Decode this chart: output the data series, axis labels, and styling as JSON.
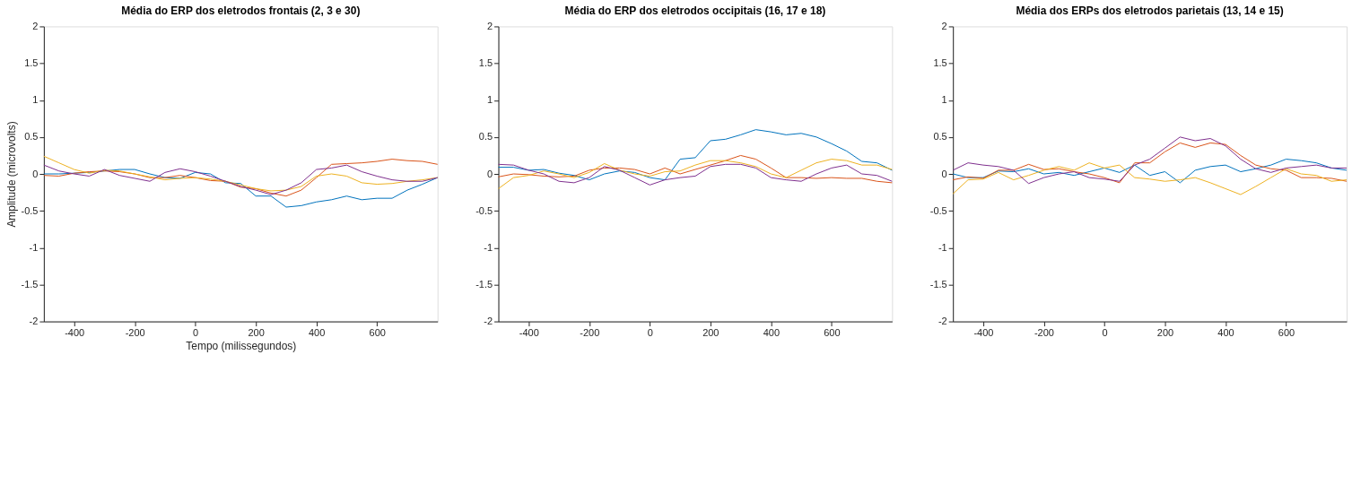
{
  "chart_data": [
    {
      "type": "line",
      "title": "Média do ERP dos eletrodos frontais (2, 3 e 30)",
      "xlabel": "Tempo (milissegundos)",
      "ylabel": "Amplitude (microvolts)",
      "x": [
        -500,
        -450,
        -400,
        -350,
        -300,
        -250,
        -200,
        -150,
        -100,
        -50,
        0,
        50,
        100,
        150,
        200,
        250,
        300,
        350,
        400,
        450,
        500,
        550,
        600,
        650,
        700,
        750,
        800
      ],
      "xlim": [
        -500,
        800
      ],
      "xticks": [
        -400,
        -200,
        0,
        200,
        400,
        600
      ],
      "ylim": [
        -2,
        2
      ],
      "yticks": [
        -2,
        -1.5,
        -1,
        -0.5,
        0,
        0.5,
        1,
        1.5,
        2
      ],
      "grid": false,
      "series": [
        {
          "color": "#0072bd",
          "values": [
            0.0,
            0.0,
            0.01,
            0.02,
            0.04,
            0.06,
            0.06,
            0.0,
            -0.05,
            -0.06,
            0.02,
            0.0,
            -0.12,
            -0.13,
            -0.3,
            -0.3,
            -0.45,
            -0.43,
            -0.38,
            -0.35,
            -0.3,
            -0.35,
            -0.33,
            -0.33,
            -0.22,
            -0.14,
            -0.05
          ]
        },
        {
          "color": "#d95319",
          "values": [
            -0.02,
            -0.03,
            0.01,
            0.03,
            0.04,
            0.03,
            0.0,
            -0.05,
            -0.05,
            -0.02,
            -0.05,
            -0.09,
            -0.1,
            -0.18,
            -0.2,
            -0.26,
            -0.3,
            -0.22,
            -0.05,
            0.13,
            0.14,
            0.15,
            0.17,
            0.2,
            0.18,
            0.17,
            0.13
          ]
        },
        {
          "color": "#edb120",
          "values": [
            0.24,
            0.15,
            0.06,
            0.01,
            0.05,
            0.04,
            0.0,
            -0.04,
            -0.08,
            -0.06,
            -0.05,
            -0.07,
            -0.1,
            -0.15,
            -0.2,
            -0.23,
            -0.22,
            -0.17,
            -0.03,
            0.0,
            -0.03,
            -0.12,
            -0.14,
            -0.13,
            -0.1,
            -0.08,
            -0.05
          ]
        },
        {
          "color": "#7e2f8e",
          "values": [
            0.12,
            0.04,
            0.0,
            -0.03,
            0.06,
            -0.02,
            -0.06,
            -0.1,
            0.02,
            0.07,
            0.03,
            -0.03,
            -0.1,
            -0.17,
            -0.22,
            -0.28,
            -0.22,
            -0.12,
            0.06,
            0.08,
            0.12,
            0.03,
            -0.03,
            -0.08,
            -0.1,
            -0.1,
            -0.05
          ]
        }
      ]
    },
    {
      "type": "line",
      "title": "Média do ERP dos eletrodos occipitais (16, 17 e 18)",
      "x": [
        -500,
        -450,
        -400,
        -350,
        -300,
        -250,
        -200,
        -150,
        -100,
        -50,
        0,
        50,
        100,
        150,
        200,
        250,
        300,
        350,
        400,
        450,
        500,
        550,
        600,
        650,
        700,
        750,
        800
      ],
      "xlim": [
        -500,
        800
      ],
      "xticks": [
        -400,
        -200,
        0,
        200,
        400,
        600
      ],
      "ylim": [
        -2,
        2
      ],
      "yticks": [
        -2,
        -1.5,
        -1,
        -0.5,
        0,
        0.5,
        1,
        1.5,
        2
      ],
      "grid": false,
      "series": [
        {
          "color": "#0072bd",
          "values": [
            0.09,
            0.09,
            0.05,
            0.06,
            0.01,
            -0.02,
            -0.08,
            0.0,
            0.04,
            0.02,
            -0.05,
            -0.08,
            0.2,
            0.22,
            0.45,
            0.47,
            0.53,
            0.6,
            0.57,
            0.53,
            0.55,
            0.5,
            0.41,
            0.31,
            0.17,
            0.15,
            0.05
          ]
        },
        {
          "color": "#d95319",
          "values": [
            -0.04,
            0.0,
            -0.01,
            -0.03,
            -0.04,
            -0.03,
            0.05,
            0.08,
            0.08,
            0.06,
            0.0,
            0.08,
            0.0,
            0.06,
            0.12,
            0.18,
            0.25,
            0.2,
            0.08,
            -0.05,
            -0.05,
            -0.06,
            -0.05,
            -0.06,
            -0.06,
            -0.1,
            -0.12
          ]
        },
        {
          "color": "#edb120",
          "values": [
            -0.2,
            -0.05,
            -0.02,
            0.04,
            0.0,
            -0.05,
            0.02,
            0.14,
            0.05,
            0.0,
            -0.03,
            0.03,
            0.04,
            0.12,
            0.18,
            0.18,
            0.15,
            0.1,
            0.0,
            -0.05,
            0.05,
            0.15,
            0.2,
            0.18,
            0.12,
            0.12,
            0.06
          ]
        },
        {
          "color": "#7e2f8e",
          "values": [
            0.13,
            0.12,
            0.05,
            0.0,
            -0.1,
            -0.12,
            -0.05,
            0.1,
            0.05,
            -0.05,
            -0.15,
            -0.08,
            -0.05,
            -0.03,
            0.1,
            0.13,
            0.13,
            0.08,
            -0.05,
            -0.08,
            -0.1,
            0.0,
            0.08,
            0.12,
            0.0,
            -0.02,
            -0.1
          ]
        }
      ]
    },
    {
      "type": "line",
      "title": "Média dos ERPs dos eletrodos parietais (13, 14 e 15)",
      "x": [
        -500,
        -450,
        -400,
        -350,
        -300,
        -250,
        -200,
        -150,
        -100,
        -50,
        0,
        50,
        100,
        150,
        200,
        250,
        300,
        350,
        400,
        450,
        500,
        550,
        600,
        650,
        700,
        750,
        800
      ],
      "xlim": [
        -500,
        800
      ],
      "xticks": [
        -400,
        -200,
        0,
        200,
        400,
        600
      ],
      "ylim": [
        -2,
        2
      ],
      "yticks": [
        -2,
        -1.5,
        -1,
        -0.5,
        0,
        0.5,
        1,
        1.5,
        2
      ],
      "grid": false,
      "series": [
        {
          "color": "#0072bd",
          "values": [
            0.0,
            -0.05,
            -0.05,
            0.04,
            0.03,
            0.07,
            0.0,
            0.02,
            -0.02,
            0.03,
            0.08,
            0.02,
            0.12,
            -0.02,
            0.03,
            -0.12,
            0.05,
            0.1,
            0.12,
            0.03,
            0.07,
            0.12,
            0.2,
            0.18,
            0.15,
            0.08,
            0.05
          ]
        },
        {
          "color": "#d95319",
          "values": [
            -0.08,
            -0.04,
            -0.06,
            0.05,
            0.05,
            0.13,
            0.06,
            0.07,
            0.03,
            0.0,
            -0.05,
            -0.12,
            0.15,
            0.15,
            0.3,
            0.42,
            0.36,
            0.42,
            0.4,
            0.25,
            0.12,
            0.07,
            0.05,
            -0.05,
            -0.05,
            -0.06,
            -0.1
          ]
        },
        {
          "color": "#edb120",
          "values": [
            -0.27,
            -0.08,
            -0.07,
            0.02,
            -0.08,
            -0.02,
            0.05,
            0.1,
            0.05,
            0.15,
            0.08,
            0.12,
            -0.05,
            -0.07,
            -0.1,
            -0.08,
            -0.05,
            -0.12,
            -0.2,
            -0.28,
            -0.17,
            -0.05,
            0.07,
            0.0,
            -0.02,
            -0.1,
            -0.08
          ]
        },
        {
          "color": "#7e2f8e",
          "values": [
            0.05,
            0.15,
            0.12,
            0.1,
            0.05,
            -0.13,
            -0.05,
            0.0,
            0.03,
            -0.05,
            -0.07,
            -0.1,
            0.12,
            0.2,
            0.35,
            0.5,
            0.45,
            0.48,
            0.38,
            0.2,
            0.07,
            0.02,
            0.08,
            0.1,
            0.12,
            0.08,
            0.08
          ]
        }
      ]
    }
  ]
}
